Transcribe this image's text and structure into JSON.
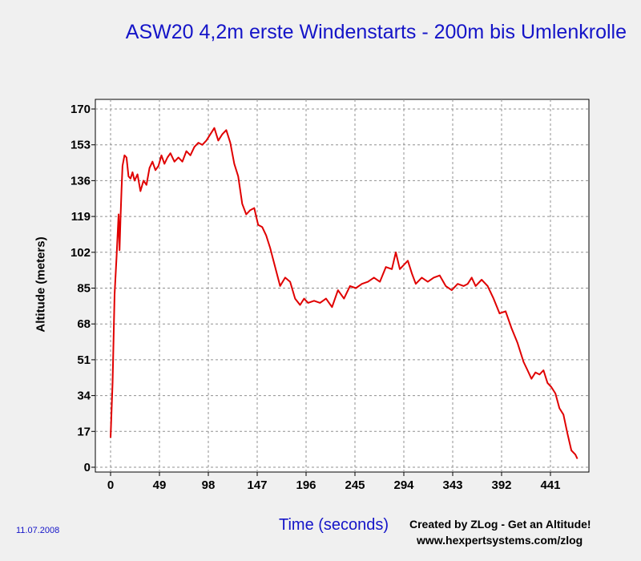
{
  "chart_data": {
    "type": "line",
    "title": "ASW20 4,2m erste Windenstarts - 200m bis Umlenkrolle",
    "xlabel": "Time (seconds)",
    "ylabel": "Altitude (meters)",
    "xlim": [
      -15,
      476
    ],
    "ylim": [
      0,
      170
    ],
    "xticks": [
      0,
      49,
      98,
      147,
      196,
      245,
      294,
      343,
      392,
      441
    ],
    "yticks": [
      0,
      17,
      34,
      51,
      68,
      85,
      102,
      119,
      136,
      153,
      170
    ],
    "grid": true,
    "series": [
      {
        "color": "#e00000",
        "x": [
          0,
          2,
          4,
          6,
          8,
          9,
          10,
          11,
          12,
          14,
          16,
          18,
          20,
          22,
          24,
          27,
          30,
          33,
          36,
          39,
          42,
          45,
          48,
          51,
          54,
          57,
          60,
          64,
          68,
          72,
          76,
          80,
          84,
          88,
          92,
          96,
          100,
          104,
          108,
          112,
          116,
          120,
          124,
          128,
          132,
          136,
          140,
          144,
          148,
          152,
          156,
          160,
          165,
          170,
          175,
          180,
          185,
          190,
          194,
          198,
          204,
          210,
          216,
          222,
          228,
          234,
          240,
          246,
          252,
          258,
          264,
          270,
          276,
          282,
          286,
          288,
          290,
          294,
          298,
          302,
          306,
          312,
          318,
          324,
          330,
          336,
          342,
          348,
          354,
          358,
          362,
          366,
          372,
          378,
          384,
          390,
          396,
          402,
          408,
          414,
          418,
          422,
          426,
          430,
          434,
          438,
          442,
          446,
          450,
          454,
          458,
          462,
          466,
          468
        ],
        "y": [
          14,
          40,
          82,
          100,
          120,
          103,
          118,
          132,
          143,
          148,
          147,
          138,
          137,
          140,
          136,
          139,
          131,
          136,
          134,
          142,
          145,
          141,
          143,
          148,
          144,
          147,
          149,
          145,
          147,
          145,
          150,
          148,
          152,
          154,
          153,
          155,
          158,
          161,
          155,
          158,
          160,
          154,
          144,
          138,
          125,
          120,
          122,
          123,
          115,
          114,
          110,
          104,
          95,
          86,
          90,
          88,
          80,
          77,
          80,
          78,
          79,
          78,
          80,
          76,
          84,
          80,
          86,
          85,
          87,
          88,
          90,
          88,
          95,
          94,
          102,
          98,
          94,
          96,
          98,
          92,
          87,
          90,
          88,
          90,
          91,
          86,
          84,
          87,
          86,
          87,
          90,
          86,
          89,
          86,
          80,
          73,
          74,
          66,
          59,
          50,
          46,
          42,
          45,
          44,
          46,
          40,
          38,
          35,
          28,
          25,
          16,
          8,
          6,
          4
        ]
      }
    ]
  },
  "footer": {
    "date": "11.07.2008",
    "credit_line1": "Created by ZLog - Get an Altitude!",
    "credit_line2": "www.hexpertsystems.com/zlog"
  }
}
